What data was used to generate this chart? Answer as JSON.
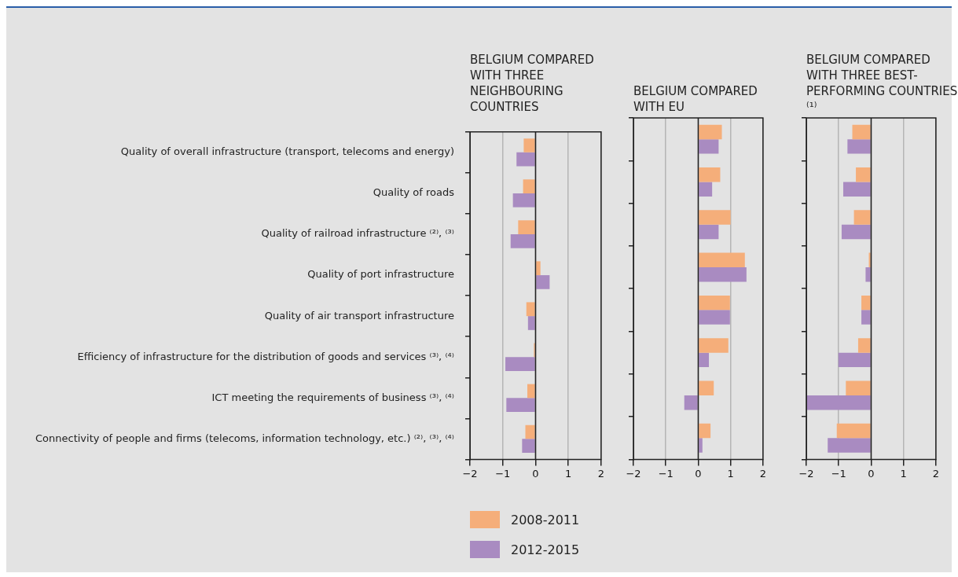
{
  "chart_data": [
    {
      "type": "bar",
      "orientation": "horizontal",
      "title": "BELGIUM COMPARED WITH THREE NEIGHBOURING COUNTRIES",
      "categories": [
        "Quality of overall infrastructure (transport, telecoms and energy)",
        "Quality of roads",
        "Quality of railroad infrastructure ⁽²⁾, ⁽³⁾",
        "Quality of port infrastructure",
        "Quality of air transport infrastructure",
        "Efficiency of infrastructure for the distribution of goods and services ⁽³⁾, ⁽⁴⁾",
        "ICT meeting the requirements of business ⁽³⁾, ⁽⁴⁾",
        "Connectivity of people and firms (telecoms, information technology, etc.) ⁽²⁾, ⁽³⁾, ⁽⁴⁾"
      ],
      "series": [
        {
          "name": "2008-2011",
          "color": "#f5ae7a",
          "values": [
            -0.36,
            -0.38,
            -0.53,
            0.15,
            -0.28,
            -0.05,
            -0.25,
            -0.31
          ]
        },
        {
          "name": "2012-2015",
          "color": "#a98bc1",
          "values": [
            -0.58,
            -0.69,
            -0.76,
            0.43,
            -0.23,
            -0.92,
            -0.89,
            -0.41
          ]
        }
      ],
      "xlim": [
        -2,
        2
      ],
      "xticks": [
        -2,
        -1,
        0,
        1,
        2
      ],
      "grid": "x",
      "legend": "bottom"
    },
    {
      "type": "bar",
      "orientation": "horizontal",
      "title": "BELGIUM COMPARED WITH EU",
      "categories": [
        null,
        null,
        null,
        null,
        null,
        null,
        null,
        null
      ],
      "series": [
        {
          "color": "#f5ae7a",
          "values": [
            0.73,
            0.68,
            1.0,
            1.44,
            0.98,
            0.93,
            0.48,
            0.38
          ]
        },
        {
          "color": "#a98bc1",
          "values": [
            0.63,
            0.43,
            0.63,
            1.49,
            0.98,
            0.33,
            -0.43,
            0.13
          ]
        }
      ],
      "xlim": [
        -2,
        2
      ],
      "xticks": [
        -2,
        -1,
        0,
        1,
        2
      ],
      "grid": "x",
      "tick_labels": "x"
    },
    {
      "type": "bar",
      "orientation": "horizontal",
      "title": "BELGIUM COMPARED WITH THREE BEST-PERFORMING COUNTRIES ⁽¹⁾",
      "categories": [
        null,
        null,
        null,
        null,
        null,
        null,
        null,
        null
      ],
      "series": [
        {
          "color": "#f5ae7a",
          "values": [
            -0.58,
            -0.47,
            -0.53,
            -0.07,
            -0.3,
            -0.4,
            -0.78,
            -1.06
          ]
        },
        {
          "color": "#a98bc1",
          "values": [
            -0.73,
            -0.86,
            -0.91,
            -0.17,
            -0.3,
            -1.01,
            -1.98,
            -1.34
          ]
        }
      ],
      "xlim": [
        -2,
        2
      ],
      "xticks": [
        -2,
        -1,
        0,
        1,
        2
      ],
      "grid": "x",
      "tick_labels": "x"
    }
  ]
}
